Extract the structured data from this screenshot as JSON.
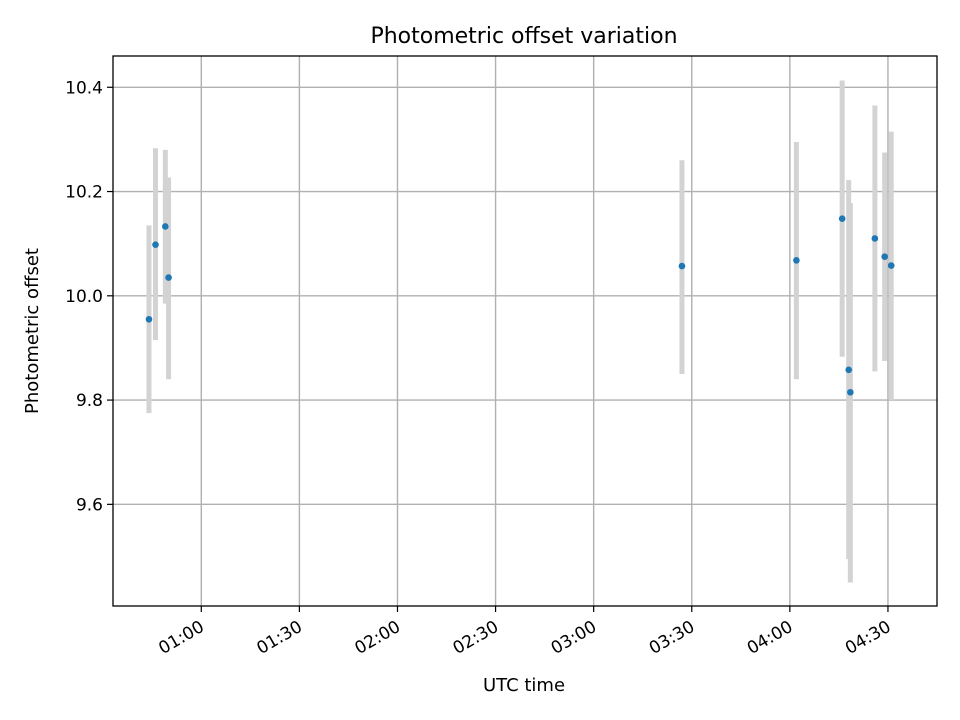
{
  "chart_data": {
    "type": "scatter",
    "title": "Photometric offset variation",
    "xlabel": "UTC time",
    "ylabel": "Photometric offset",
    "xlim": [
      "00:33",
      "04:45"
    ],
    "ylim": [
      9.405,
      10.46
    ],
    "x_ticks": [
      "01:00",
      "01:30",
      "02:00",
      "02:30",
      "03:00",
      "03:30",
      "04:00",
      "04:30"
    ],
    "y_ticks": [
      9.6,
      9.8,
      10.0,
      10.2,
      10.4
    ],
    "y_tick_labels": [
      "9.6",
      "9.8",
      "10.0",
      "10.2",
      "10.4"
    ],
    "grid": true,
    "colors": {
      "point": "#1f77b4",
      "errorbar": "#d3d3d3"
    },
    "points": [
      {
        "x": "00:44",
        "y": 9.955,
        "yerr_low": 9.775,
        "yerr_high": 10.135
      },
      {
        "x": "00:46",
        "y": 10.098,
        "yerr_low": 9.915,
        "yerr_high": 10.283
      },
      {
        "x": "00:49",
        "y": 10.133,
        "yerr_low": 9.985,
        "yerr_high": 10.28
      },
      {
        "x": "00:50",
        "y": 10.035,
        "yerr_low": 9.84,
        "yerr_high": 10.227
      },
      {
        "x": "03:27",
        "y": 10.057,
        "yerr_low": 9.85,
        "yerr_high": 10.26
      },
      {
        "x": "04:02",
        "y": 10.068,
        "yerr_low": 9.84,
        "yerr_high": 10.295
      },
      {
        "x": "04:16",
        "y": 10.148,
        "yerr_low": 9.883,
        "yerr_high": 10.413
      },
      {
        "x": "04:18",
        "y": 9.858,
        "yerr_low": 9.495,
        "yerr_high": 10.222
      },
      {
        "x": "04:18:30",
        "y": 9.815,
        "yerr_low": 9.45,
        "yerr_high": 10.178
      },
      {
        "x": "04:26",
        "y": 10.11,
        "yerr_low": 9.855,
        "yerr_high": 10.365
      },
      {
        "x": "04:29",
        "y": 10.075,
        "yerr_low": 9.875,
        "yerr_high": 10.275
      },
      {
        "x": "04:31",
        "y": 10.058,
        "yerr_low": 9.8,
        "yerr_high": 10.315
      }
    ]
  }
}
